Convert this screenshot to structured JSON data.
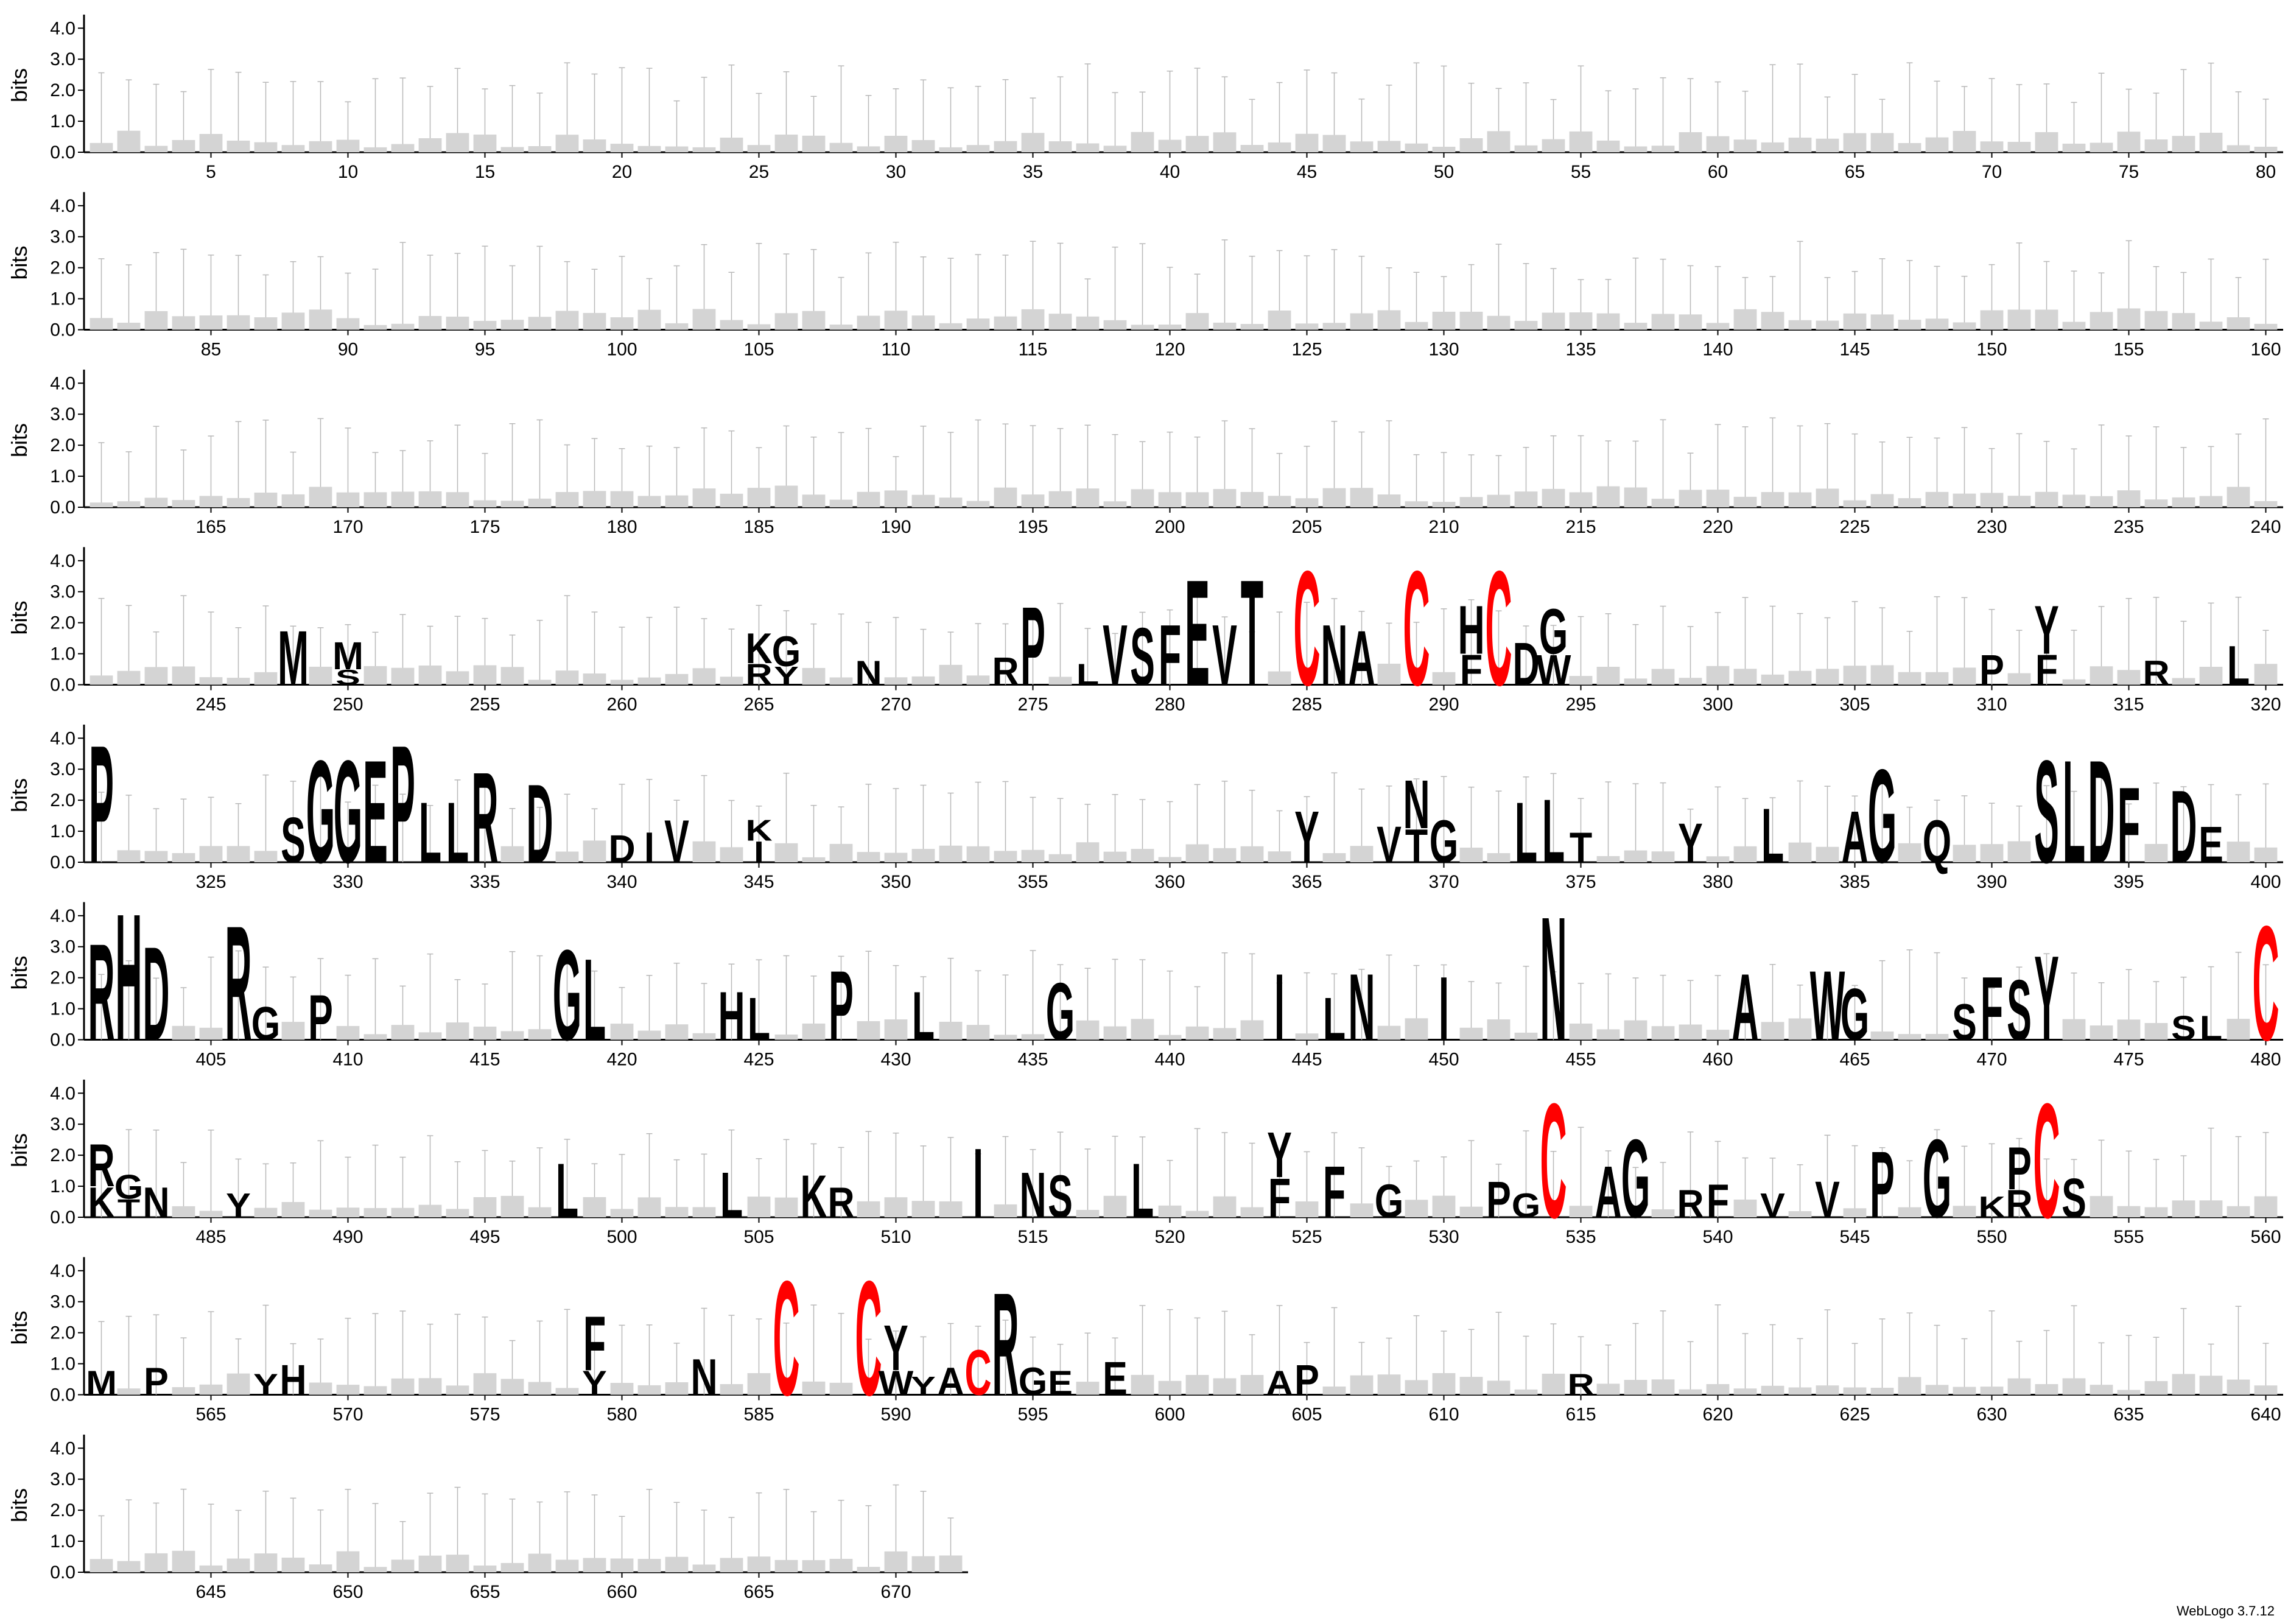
{
  "chart_data": {
    "type": "sequence_logo",
    "ylabel": "bits",
    "ylim": [
      0,
      4.32
    ],
    "yticks": [
      "0.0",
      "1.0",
      "2.0",
      "3.0",
      "4.0"
    ],
    "n_positions": 672,
    "positions_per_row": 80,
    "tick_every": 5,
    "colors": {
      "default": "#000000",
      "C": "#ff0000",
      "errorbar": "#b8b8b8"
    },
    "letters": {
      "248": [
        {
          "l": "M",
          "h": 1.8
        }
      ],
      "250": [
        {
          "l": "S",
          "h": 0.5
        },
        {
          "l": "M",
          "h": 0.9
        }
      ],
      "265": [
        {
          "l": "R",
          "h": 0.7
        },
        {
          "l": "K",
          "h": 1.0
        }
      ],
      "266": [
        {
          "l": "Y",
          "h": 0.6
        },
        {
          "l": "G",
          "h": 1.0
        }
      ],
      "269": [
        {
          "l": "N",
          "h": 0.8
        }
      ],
      "274": [
        {
          "l": "R",
          "h": 0.9
        }
      ],
      "275": [
        {
          "l": "P",
          "h": 2.6
        }
      ],
      "277": [
        {
          "l": "L",
          "h": 0.7
        }
      ],
      "278": [
        {
          "l": "V",
          "h": 2.0
        }
      ],
      "279": [
        {
          "l": "S",
          "h": 1.9
        }
      ],
      "280": [
        {
          "l": "F",
          "h": 2.0
        }
      ],
      "281": [
        {
          "l": "E",
          "h": 3.5
        }
      ],
      "282": [
        {
          "l": "V",
          "h": 2.0
        }
      ],
      "283": [
        {
          "l": "T",
          "h": 3.5
        }
      ],
      "285": [
        {
          "l": "C",
          "h": 3.8
        }
      ],
      "286": [
        {
          "l": "N",
          "h": 2.0
        }
      ],
      "287": [
        {
          "l": "A",
          "h": 1.8
        }
      ],
      "289": [
        {
          "l": "C",
          "h": 3.8
        }
      ],
      "291": [
        {
          "l": "F",
          "h": 1.0
        },
        {
          "l": "H",
          "h": 1.6
        }
      ],
      "292": [
        {
          "l": "C",
          "h": 3.8
        }
      ],
      "293": [
        {
          "l": "D",
          "h": 1.4
        }
      ],
      "294": [
        {
          "l": "W",
          "h": 1.0
        },
        {
          "l": "G",
          "h": 1.5
        }
      ],
      "310": [
        {
          "l": "P",
          "h": 1.0
        }
      ],
      "312": [
        {
          "l": "F",
          "h": 1.0
        },
        {
          "l": "Y",
          "h": 1.6
        }
      ],
      "316": [
        {
          "l": "R",
          "h": 0.8
        }
      ],
      "319": [
        {
          "l": "L",
          "h": 1.3
        }
      ],
      "321": [
        {
          "l": "P",
          "h": 3.9
        }
      ],
      "328": [
        {
          "l": "S",
          "h": 1.5
        }
      ],
      "329": [
        {
          "l": "G",
          "h": 3.4
        }
      ],
      "330": [
        {
          "l": "G",
          "h": 3.4
        }
      ],
      "331": [
        {
          "l": "E",
          "h": 3.4
        }
      ],
      "332": [
        {
          "l": "P",
          "h": 3.9
        }
      ],
      "333": [
        {
          "l": "L",
          "h": 2.0
        }
      ],
      "334": [
        {
          "l": "L",
          "h": 2.0
        }
      ],
      "335": [
        {
          "l": "R",
          "h": 3.0
        }
      ],
      "337": [
        {
          "l": "D",
          "h": 2.6
        }
      ],
      "340": [
        {
          "l": "D",
          "h": 0.9
        }
      ],
      "341": [
        {
          "l": "I",
          "h": 1.0
        }
      ],
      "342": [
        {
          "l": "V",
          "h": 1.4
        }
      ],
      "345": [
        {
          "l": "I",
          "h": 0.7
        },
        {
          "l": "K",
          "h": 0.7
        }
      ],
      "365": [
        {
          "l": "Y",
          "h": 1.7
        }
      ],
      "368": [
        {
          "l": "V",
          "h": 1.2
        }
      ],
      "369": [
        {
          "l": "T",
          "h": 1.1
        },
        {
          "l": "N",
          "h": 1.6
        }
      ],
      "370": [
        {
          "l": "G",
          "h": 1.4
        }
      ],
      "373": [
        {
          "l": "L",
          "h": 2.0
        }
      ],
      "374": [
        {
          "l": "L",
          "h": 2.1
        }
      ],
      "375": [
        {
          "l": "T",
          "h": 1.0
        }
      ],
      "379": [
        {
          "l": "Y",
          "h": 1.3
        }
      ],
      "382": [
        {
          "l": "L",
          "h": 1.8
        }
      ],
      "385": [
        {
          "l": "A",
          "h": 1.7
        }
      ],
      "386": [
        {
          "l": "G",
          "h": 3.1
        }
      ],
      "388": [
        {
          "l": "Q",
          "h": 1.4
        }
      ],
      "392": [
        {
          "l": "S",
          "h": 3.4
        }
      ],
      "393": [
        {
          "l": "L",
          "h": 3.4
        }
      ],
      "394": [
        {
          "l": "D",
          "h": 3.4
        }
      ],
      "395": [
        {
          "l": "F",
          "h": 2.5
        }
      ],
      "397": [
        {
          "l": "D",
          "h": 2.4
        }
      ],
      "398": [
        {
          "l": "E",
          "h": 1.2
        }
      ],
      "401": [
        {
          "l": "R",
          "h": 3.2
        }
      ],
      "402": [
        {
          "l": "H",
          "h": 4.2
        }
      ],
      "403": [
        {
          "l": "D",
          "h": 3.1
        }
      ],
      "406": [
        {
          "l": "R",
          "h": 3.8
        }
      ],
      "407": [
        {
          "l": "G",
          "h": 1.1
        }
      ],
      "409": [
        {
          "l": "P",
          "h": 1.5
        }
      ],
      "418": [
        {
          "l": "G",
          "h": 3.0
        }
      ],
      "419": [
        {
          "l": "L",
          "h": 2.7
        }
      ],
      "424": [
        {
          "l": "H",
          "h": 1.6
        }
      ],
      "425": [
        {
          "l": "L",
          "h": 1.4
        }
      ],
      "428": [
        {
          "l": "P",
          "h": 2.3
        }
      ],
      "431": [
        {
          "l": "L",
          "h": 1.6
        }
      ],
      "436": [
        {
          "l": "G",
          "h": 1.9
        }
      ],
      "444": [
        {
          "l": "I",
          "h": 2.2
        }
      ],
      "446": [
        {
          "l": "L",
          "h": 1.4
        }
      ],
      "447": [
        {
          "l": "N",
          "h": 2.2
        }
      ],
      "450": [
        {
          "l": "I",
          "h": 2.1
        }
      ],
      "454": [
        {
          "l": "N",
          "h": 4.1
        }
      ],
      "461": [
        {
          "l": "A",
          "h": 2.2
        }
      ],
      "464": [
        {
          "l": "W",
          "h": 2.3
        }
      ],
      "465": [
        {
          "l": "G",
          "h": 1.7
        }
      ],
      "469": [
        {
          "l": "S",
          "h": 1.2
        }
      ],
      "470": [
        {
          "l": "F",
          "h": 2.1
        }
      ],
      "471": [
        {
          "l": "S",
          "h": 2.0
        }
      ],
      "472": [
        {
          "l": "Y",
          "h": 2.8
        }
      ],
      "477": [
        {
          "l": "S",
          "h": 0.8
        }
      ],
      "478": [
        {
          "l": "L",
          "h": 0.8
        }
      ],
      "480": [
        {
          "l": "C",
          "h": 3.8
        }
      ],
      "481": [
        {
          "l": "K",
          "h": 1.0
        },
        {
          "l": "R",
          "h": 1.4
        }
      ],
      "482": [
        {
          "l": "T",
          "h": 0.6
        },
        {
          "l": "G",
          "h": 0.8
        }
      ],
      "483": [
        {
          "l": "N",
          "h": 1.0
        }
      ],
      "486": [
        {
          "l": "Y",
          "h": 0.8
        }
      ],
      "498": [
        {
          "l": "L",
          "h": 1.8
        }
      ],
      "504": [
        {
          "l": "L",
          "h": 1.5
        }
      ],
      "507": [
        {
          "l": "K",
          "h": 1.4
        }
      ],
      "508": [
        {
          "l": "R",
          "h": 1.0
        }
      ],
      "513": [
        {
          "l": "I",
          "h": 2.3
        }
      ],
      "515": [
        {
          "l": "N",
          "h": 1.5
        }
      ],
      "516": [
        {
          "l": "S",
          "h": 1.4
        }
      ],
      "519": [
        {
          "l": "L",
          "h": 1.8
        }
      ],
      "524": [
        {
          "l": "F",
          "h": 1.3
        },
        {
          "l": "Y",
          "h": 1.5
        }
      ],
      "526": [
        {
          "l": "F",
          "h": 1.7
        }
      ],
      "528": [
        {
          "l": "G",
          "h": 1.1
        }
      ],
      "532": [
        {
          "l": "P",
          "h": 1.2
        }
      ],
      "533": [
        {
          "l": "G",
          "h": 0.8
        }
      ],
      "534": [
        {
          "l": "C",
          "h": 3.8
        }
      ],
      "536": [
        {
          "l": "A",
          "h": 1.7
        }
      ],
      "537": [
        {
          "l": "G",
          "h": 2.6
        }
      ],
      "539": [
        {
          "l": "R",
          "h": 0.9
        }
      ],
      "540": [
        {
          "l": "F",
          "h": 1.1
        }
      ],
      "542": [
        {
          "l": "V",
          "h": 0.8
        }
      ],
      "544": [
        {
          "l": "V",
          "h": 1.2
        }
      ],
      "546": [
        {
          "l": "P",
          "h": 2.2
        }
      ],
      "548": [
        {
          "l": "G",
          "h": 2.6
        }
      ],
      "550": [
        {
          "l": "K",
          "h": 0.7
        }
      ],
      "551": [
        {
          "l": "R",
          "h": 0.9
        },
        {
          "l": "P",
          "h": 1.4
        }
      ],
      "552": [
        {
          "l": "C",
          "h": 3.8
        }
      ],
      "553": [
        {
          "l": "S",
          "h": 1.3
        }
      ],
      "561": [
        {
          "l": "M",
          "h": 0.8
        }
      ],
      "563": [
        {
          "l": "P",
          "h": 0.9
        }
      ],
      "567": [
        {
          "l": "Y",
          "h": 0.7
        }
      ],
      "568": [
        {
          "l": "H",
          "h": 1.0
        }
      ],
      "579": [
        {
          "l": "Y",
          "h": 0.8
        },
        {
          "l": "F",
          "h": 1.8
        }
      ],
      "583": [
        {
          "l": "N",
          "h": 1.2
        }
      ],
      "586": [
        {
          "l": "C",
          "h": 3.8
        }
      ],
      "589": [
        {
          "l": "C",
          "h": 3.8
        }
      ],
      "590": [
        {
          "l": "W",
          "h": 0.8
        },
        {
          "l": "Y",
          "h": 1.5
        }
      ],
      "591": [
        {
          "l": "Y",
          "h": 0.6
        }
      ],
      "592": [
        {
          "l": "A",
          "h": 0.9
        }
      ],
      "593": [
        {
          "l": "C",
          "h": 1.5
        }
      ],
      "594": [
        {
          "l": "R",
          "h": 3.4
        }
      ],
      "595": [
        {
          "l": "G",
          "h": 0.9
        }
      ],
      "596": [
        {
          "l": "E",
          "h": 0.8
        }
      ],
      "598": [
        {
          "l": "E",
          "h": 1.1
        }
      ],
      "604": [
        {
          "l": "A",
          "h": 0.8
        }
      ],
      "605": [
        {
          "l": "P",
          "h": 1.0
        }
      ],
      "615": [
        {
          "l": "R",
          "h": 0.7
        }
      ]
    }
  },
  "footer": {
    "credit": "WebLogo 3.7.12"
  }
}
